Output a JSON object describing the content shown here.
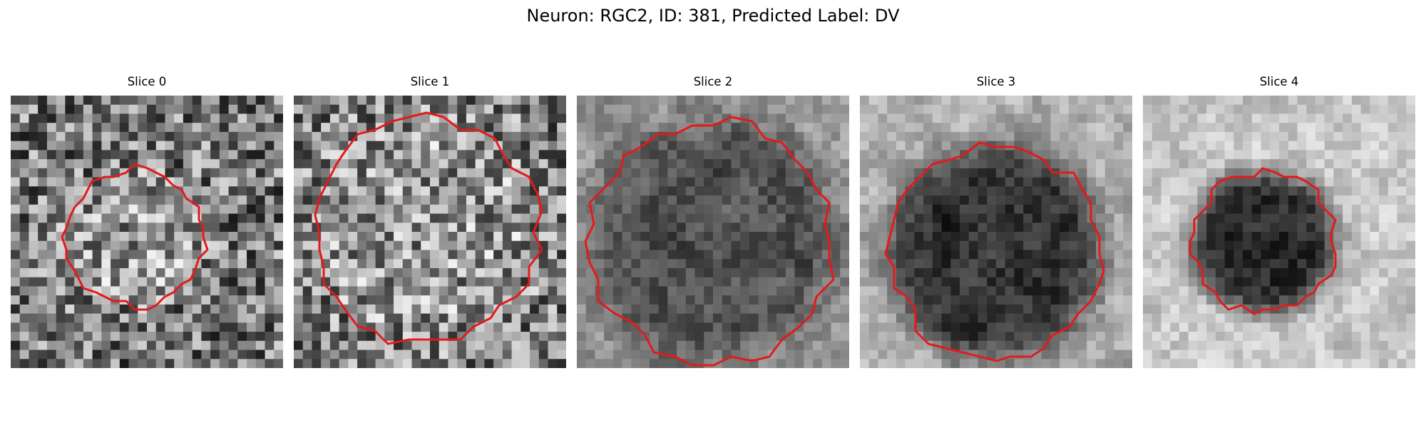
{
  "figure": {
    "title": "Neuron: RGC2, ID: 381, Predicted Label: DV"
  },
  "slices": [
    {
      "title": "Slice 0"
    },
    {
      "title": "Slice 1"
    },
    {
      "title": "Slice 2"
    },
    {
      "title": "Slice 3"
    },
    {
      "title": "Slice 4"
    }
  ],
  "colors": {
    "contour": "#e31a1c",
    "background": "#ffffff"
  },
  "image_style": "grayscale noisy microscopy tiles with red ROI contour"
}
